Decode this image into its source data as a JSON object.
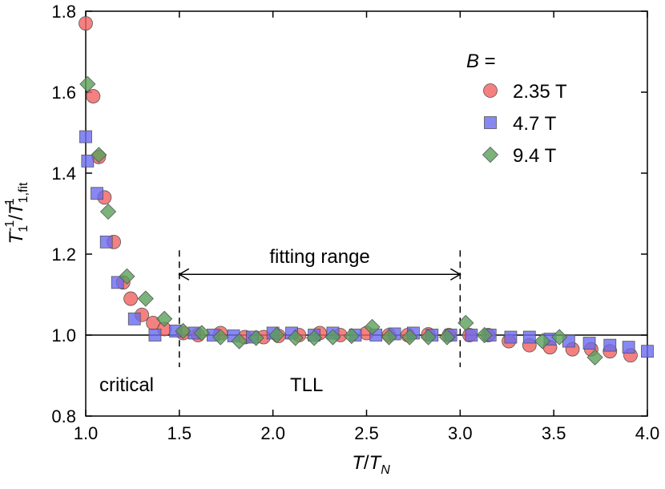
{
  "chart_data": {
    "type": "scatter",
    "xlabel": {
      "main": "T",
      "sep": "/",
      "main2": "T",
      "sub2": "N"
    },
    "ylabel": {
      "main": "T",
      "sub": "1",
      "sup": "-1",
      "sep": "/",
      "main2": "T",
      "sub2": "1,fit",
      "sup2": "-1"
    },
    "xlim": [
      1.0,
      4.0
    ],
    "ylim": [
      0.8,
      1.8
    ],
    "xticks": [
      "1.0",
      "1.5",
      "2.0",
      "2.5",
      "3.0",
      "3.5",
      "4.0"
    ],
    "yticks": [
      "0.8",
      "1.0",
      "1.2",
      "1.4",
      "1.6",
      "1.8"
    ],
    "reference_line_y": 1.0,
    "legend": {
      "title_var": "B",
      "title_suffix": " =",
      "placement": "top-right",
      "entries": [
        "2.35 T",
        "4.7 T",
        "9.4 T"
      ]
    },
    "annotations": {
      "fitting_range_label": "fitting range",
      "fitting_range_x": [
        1.5,
        3.0
      ],
      "fitting_range_arrow_y": 1.15,
      "critical_label": "critical",
      "tll_label": "TLL"
    },
    "series": [
      {
        "name": "2.35 T",
        "marker": "circle",
        "color": "#f26060",
        "points": [
          [
            1.0,
            1.77
          ],
          [
            1.04,
            1.59
          ],
          [
            1.07,
            1.44
          ],
          [
            1.1,
            1.34
          ],
          [
            1.15,
            1.23
          ],
          [
            1.2,
            1.13
          ],
          [
            1.24,
            1.09
          ],
          [
            1.3,
            1.05
          ],
          [
            1.36,
            1.03
          ],
          [
            1.42,
            1.015
          ],
          [
            1.52,
            1.005
          ],
          [
            1.6,
            1.0
          ],
          [
            1.72,
            1.005
          ],
          [
            1.85,
            0.995
          ],
          [
            1.95,
            0.995
          ],
          [
            2.03,
            0.998
          ],
          [
            2.14,
            1.0
          ],
          [
            2.25,
            1.005
          ],
          [
            2.36,
            1.0
          ],
          [
            2.5,
            1.005
          ],
          [
            2.62,
            1.0
          ],
          [
            2.72,
            1.0
          ],
          [
            2.83,
            1.002
          ],
          [
            2.94,
            1.0
          ],
          [
            3.05,
            1.0
          ],
          [
            3.15,
            1.0
          ],
          [
            3.26,
            0.985
          ],
          [
            3.37,
            0.975
          ],
          [
            3.48,
            0.97
          ],
          [
            3.6,
            0.965
          ],
          [
            3.7,
            0.965
          ],
          [
            3.8,
            0.96
          ],
          [
            3.91,
            0.95
          ]
        ]
      },
      {
        "name": "4.7 T",
        "marker": "square",
        "color": "#6a6af0",
        "points": [
          [
            1.0,
            1.49
          ],
          [
            1.01,
            1.43
          ],
          [
            1.06,
            1.35
          ],
          [
            1.11,
            1.23
          ],
          [
            1.17,
            1.13
          ],
          [
            1.26,
            1.04
          ],
          [
            1.37,
            1.0
          ],
          [
            1.48,
            1.01
          ],
          [
            1.58,
            1.005
          ],
          [
            1.68,
            1.0
          ],
          [
            1.79,
            0.998
          ],
          [
            1.89,
            0.995
          ],
          [
            2.0,
            1.005
          ],
          [
            2.1,
            1.005
          ],
          [
            2.22,
            1.0
          ],
          [
            2.32,
            1.005
          ],
          [
            2.44,
            1.0
          ],
          [
            2.55,
            1.0
          ],
          [
            2.65,
            1.003
          ],
          [
            2.75,
            1.005
          ],
          [
            2.85,
            1.0
          ],
          [
            2.95,
            1.0
          ],
          [
            3.06,
            1.0
          ],
          [
            3.16,
            1.0
          ],
          [
            3.27,
            0.995
          ],
          [
            3.37,
            0.995
          ],
          [
            3.48,
            0.99
          ],
          [
            3.58,
            0.985
          ],
          [
            3.69,
            0.98
          ],
          [
            3.8,
            0.975
          ],
          [
            3.9,
            0.97
          ],
          [
            4.0,
            0.96
          ]
        ]
      },
      {
        "name": "9.4 T",
        "marker": "diamond",
        "color": "#5aa05a",
        "points": [
          [
            1.01,
            1.62
          ],
          [
            1.07,
            1.445
          ],
          [
            1.12,
            1.305
          ],
          [
            1.22,
            1.145
          ],
          [
            1.32,
            1.09
          ],
          [
            1.42,
            1.04
          ],
          [
            1.52,
            1.01
          ],
          [
            1.62,
            1.005
          ],
          [
            1.72,
            0.995
          ],
          [
            1.82,
            0.985
          ],
          [
            1.91,
            0.993
          ],
          [
            2.02,
            1.0
          ],
          [
            2.12,
            0.993
          ],
          [
            2.22,
            0.993
          ],
          [
            2.32,
            0.995
          ],
          [
            2.42,
            0.998
          ],
          [
            2.53,
            1.02
          ],
          [
            2.62,
            0.995
          ],
          [
            2.73,
            0.995
          ],
          [
            2.83,
            0.995
          ],
          [
            2.93,
            0.995
          ],
          [
            3.03,
            1.03
          ],
          [
            3.13,
            1.0
          ],
          [
            3.44,
            0.985
          ],
          [
            3.53,
            0.995
          ],
          [
            3.72,
            0.945
          ]
        ]
      }
    ]
  }
}
